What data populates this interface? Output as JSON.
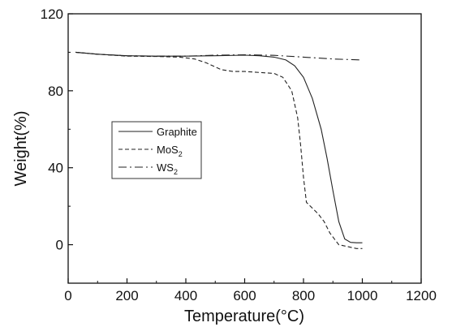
{
  "chart_data": {
    "type": "line",
    "title": "",
    "xlabel": "Temperature(°C)",
    "ylabel": "Weight(%)",
    "xlim": [
      0,
      1200
    ],
    "ylim": [
      -20,
      120
    ],
    "xticks": [
      0,
      200,
      400,
      600,
      800,
      1000,
      1200
    ],
    "yticks": [
      0,
      40,
      80,
      120
    ],
    "grid": false,
    "legend_position": "center-left",
    "series": [
      {
        "name": "Graphite",
        "base": "Graphite",
        "sub": "",
        "style": "solid",
        "x": [
          25,
          100,
          200,
          300,
          400,
          500,
          600,
          650,
          700,
          740,
          770,
          800,
          830,
          860,
          880,
          900,
          920,
          940,
          960,
          980,
          1000
        ],
        "y": [
          100,
          99,
          98.2,
          98,
          98,
          98.2,
          98.5,
          98.2,
          97.5,
          96,
          93,
          87,
          76,
          60,
          45,
          28,
          12,
          3,
          1.2,
          1,
          1
        ]
      },
      {
        "name": "MoS2",
        "base": "MoS",
        "sub": "2",
        "style": "dashed",
        "x": [
          25,
          100,
          200,
          300,
          380,
          430,
          470,
          520,
          560,
          600,
          650,
          700,
          730,
          760,
          780,
          790,
          800,
          810,
          820,
          830,
          850,
          870,
          890,
          920,
          950,
          980,
          1000
        ],
        "y": [
          100,
          99,
          98,
          97.8,
          97.5,
          96.5,
          94.5,
          91,
          90,
          90,
          89.5,
          89,
          87,
          80,
          66,
          52,
          35,
          22,
          20.5,
          19,
          16,
          12,
          6,
          0,
          -1,
          -2,
          -2
        ]
      },
      {
        "name": "WS2",
        "base": "WS",
        "sub": "2",
        "style": "dashdot",
        "x": [
          25,
          100,
          200,
          300,
          400,
          500,
          600,
          700,
          800,
          900,
          1000
        ],
        "y": [
          100,
          99,
          98.2,
          98,
          98,
          98.5,
          98.7,
          98.4,
          97.5,
          96.5,
          96
        ]
      }
    ]
  }
}
